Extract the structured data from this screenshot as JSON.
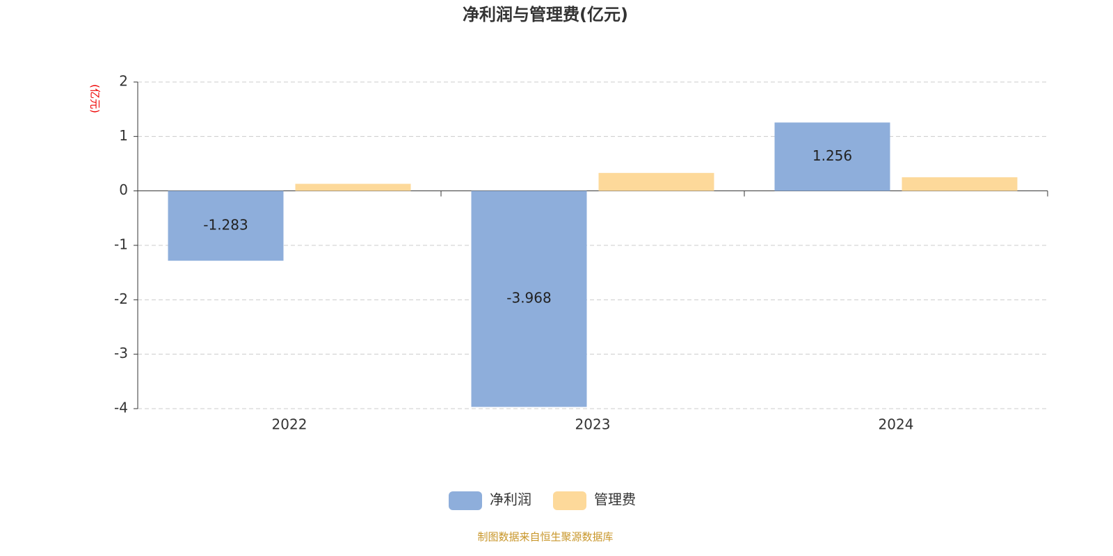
{
  "chart_data": {
    "type": "bar",
    "title": "净利润与管理费(亿元)",
    "y_label": "(亿元)",
    "categories": [
      "2022",
      "2023",
      "2024"
    ],
    "series": [
      {
        "name": "净利润",
        "color": "#8eaedb",
        "values": [
          -1.283,
          -3.968,
          1.256
        ],
        "data_labels": true
      },
      {
        "name": "管理费",
        "color": "#fdd99a",
        "values": [
          0.13,
          0.33,
          0.25
        ]
      }
    ],
    "ylim": [
      -4,
      2
    ],
    "yticks": [
      2,
      1,
      0,
      -1,
      -2,
      -3,
      -4
    ],
    "grid": true,
    "source": "制图数据来自恒生聚源数据库"
  }
}
